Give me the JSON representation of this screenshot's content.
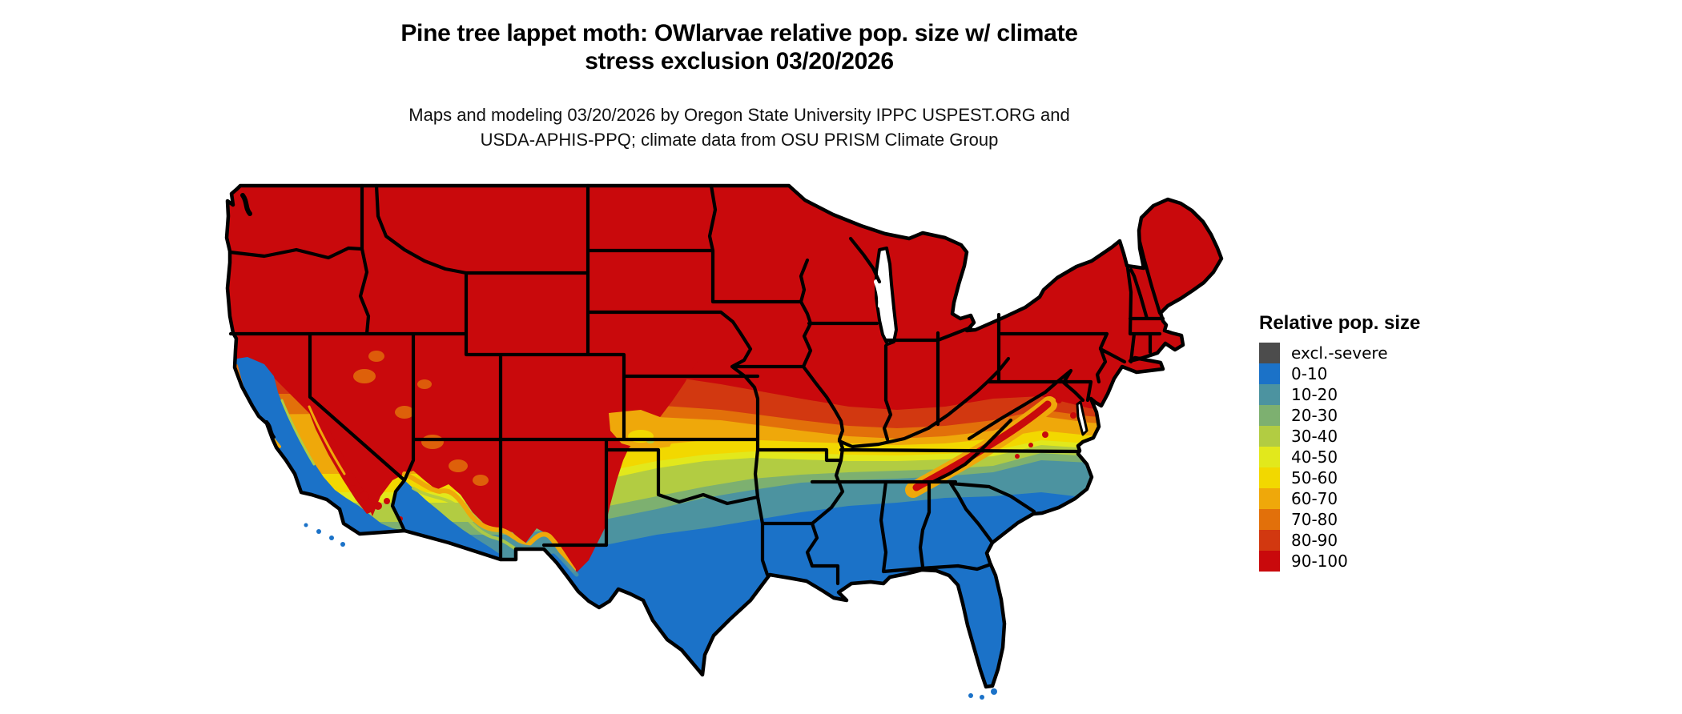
{
  "title": {
    "line1": "Pine tree lappet moth: OWlarvae relative pop. size w/ climate",
    "line2": "stress exclusion 03/20/2026"
  },
  "subtitle": {
    "line1": "Maps and modeling 03/20/2026 by Oregon State University IPPC USPEST.ORG and",
    "line2": "USDA-APHIS-PPQ; climate data from OSU PRISM Climate Group"
  },
  "legend": {
    "title": "Relative pop. size",
    "items": [
      {
        "label": "excl.-severe",
        "color": "#4C4C4C"
      },
      {
        "label": "0-10",
        "color": "#1B72C8"
      },
      {
        "label": "10-20",
        "color": "#4C93A0"
      },
      {
        "label": "20-30",
        "color": "#7DB070"
      },
      {
        "label": "30-40",
        "color": "#B2CC42"
      },
      {
        "label": "40-50",
        "color": "#E2E81C"
      },
      {
        "label": "50-60",
        "color": "#F2D800"
      },
      {
        "label": "60-70",
        "color": "#EFA80A"
      },
      {
        "label": "70-80",
        "color": "#E2700A"
      },
      {
        "label": "80-90",
        "color": "#D23810"
      },
      {
        "label": "90-100",
        "color": "#C9090C"
      }
    ]
  },
  "map": {
    "region": "Conterminous United States",
    "palette": {
      "excl": "#4C4C4C",
      "p0": "#1B72C8",
      "p10": "#4C93A0",
      "p20": "#7DB070",
      "p30": "#B2CC42",
      "p40": "#E2E81C",
      "p50": "#F2D800",
      "p60": "#EFA80A",
      "p70": "#E2700A",
      "p80": "#D23810",
      "p90": "#C9090C",
      "border": "#000000",
      "water": "#FFFFFF"
    }
  },
  "chart_data": {
    "type": "heatmap",
    "title": "Pine tree lappet moth: OWlarvae relative pop. size w/ climate stress exclusion 03/20/2026",
    "legend_title": "Relative pop. size",
    "classes": [
      "excl.-severe",
      "0-10",
      "10-20",
      "20-30",
      "30-40",
      "40-50",
      "50-60",
      "60-70",
      "70-80",
      "80-90",
      "90-100"
    ],
    "class_colors": [
      "#4C4C4C",
      "#1B72C8",
      "#4C93A0",
      "#7DB070",
      "#B2CC42",
      "#E2E81C",
      "#F2D800",
      "#EFA80A",
      "#E2700A",
      "#D23810",
      "#C9090C"
    ],
    "legend_position": "right",
    "pattern": "Values 90-100 (red) across the northern U.S., Rockies and Appalachians; banded transition 80-90 through 10-20 across the central latitudes; 0-10 (blue) across the southern U.S., California valleys/coast and the desert Southwest lowlands"
  }
}
